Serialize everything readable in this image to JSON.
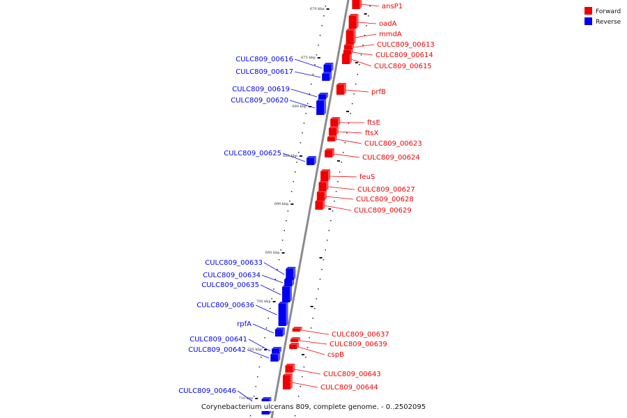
{
  "caption": "Corynebacterium ulcerans 809, complete genome. - 0..2502095",
  "colors": {
    "forward": "#ee0000",
    "reverse": "#0000ee",
    "backbone": "#8a8a8a"
  },
  "legend": [
    {
      "label": "Forward",
      "strand": "forward"
    },
    {
      "label": "Reverse",
      "strand": "reverse"
    }
  ],
  "ticks": [
    "670 kbp",
    "675 kbp",
    "680 kbp",
    "685 kbp",
    "690 kbp",
    "695 kbp",
    "700 kbp",
    "705 kbp",
    "710 kbp"
  ],
  "genes": [
    {
      "name": "ansP1",
      "strand": "forward"
    },
    {
      "name": "oadA",
      "strand": "forward"
    },
    {
      "name": "mmdA",
      "strand": "forward"
    },
    {
      "name": "CULC809_00613",
      "strand": "forward"
    },
    {
      "name": "CULC809_00614",
      "strand": "forward"
    },
    {
      "name": "CULC809_00615",
      "strand": "forward"
    },
    {
      "name": "CULC809_00616",
      "strand": "reverse"
    },
    {
      "name": "CULC809_00617",
      "strand": "reverse"
    },
    {
      "name": "prfB",
      "strand": "forward"
    },
    {
      "name": "CULC809_00619",
      "strand": "reverse"
    },
    {
      "name": "CULC809_00620",
      "strand": "reverse"
    },
    {
      "name": "ftsE",
      "strand": "forward"
    },
    {
      "name": "ftsX",
      "strand": "forward"
    },
    {
      "name": "CULC809_00623",
      "strand": "forward"
    },
    {
      "name": "CULC809_00624",
      "strand": "forward"
    },
    {
      "name": "CULC809_00625",
      "strand": "reverse"
    },
    {
      "name": "feuS",
      "strand": "forward"
    },
    {
      "name": "CULC809_00627",
      "strand": "forward"
    },
    {
      "name": "CULC809_00628",
      "strand": "forward"
    },
    {
      "name": "CULC809_00629",
      "strand": "forward"
    },
    {
      "name": "CULC809_00633",
      "strand": "reverse"
    },
    {
      "name": "CULC809_00634",
      "strand": "reverse"
    },
    {
      "name": "CULC809_00635",
      "strand": "reverse"
    },
    {
      "name": "CULC809_00636",
      "strand": "reverse"
    },
    {
      "name": "rpfA",
      "strand": "reverse"
    },
    {
      "name": "CULC809_00637",
      "strand": "forward"
    },
    {
      "name": "CULC809_00639",
      "strand": "forward"
    },
    {
      "name": "CULC809_00641",
      "strand": "reverse"
    },
    {
      "name": "cspB",
      "strand": "forward"
    },
    {
      "name": "CULC809_00642",
      "strand": "reverse"
    },
    {
      "name": "CULC809_00643",
      "strand": "forward"
    },
    {
      "name": "CULC809_00644",
      "strand": "forward"
    },
    {
      "name": "CULC809_00646",
      "strand": "reverse"
    }
  ]
}
